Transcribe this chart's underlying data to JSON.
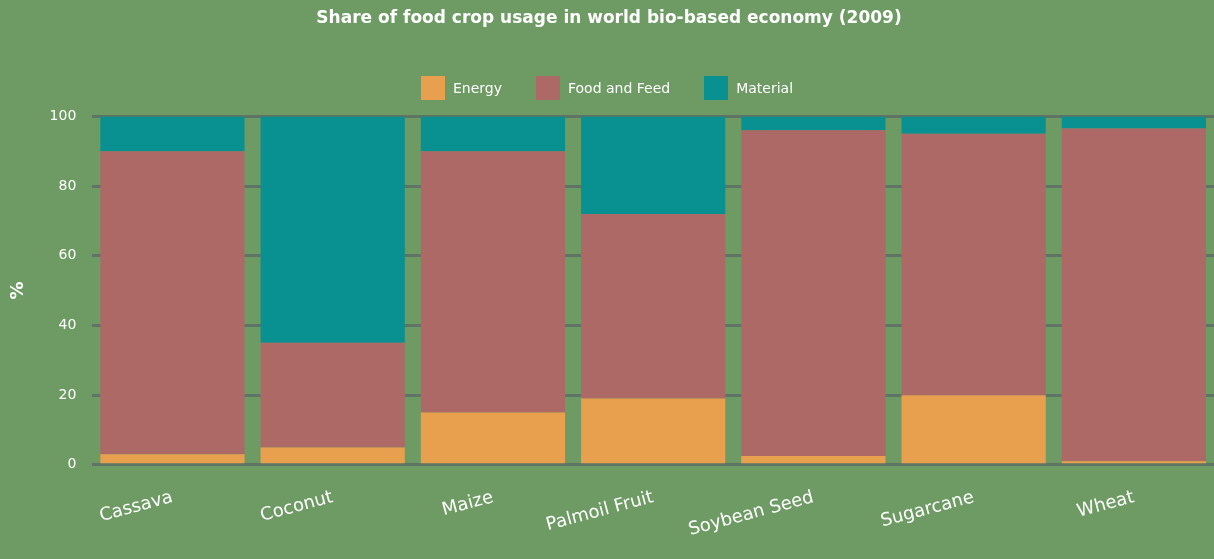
{
  "chart_data": {
    "type": "bar",
    "title": "Share of food crop usage in world bio-based economy (2009)",
    "ylabel": "%",
    "categories": [
      "Cassava",
      "Coconut",
      "Maize",
      "Palmoil Fruit",
      "Soybean Seed",
      "Sugarcane",
      "Wheat"
    ],
    "series": [
      {
        "name": "Energy",
        "color": "#e8a04f",
        "values": [
          3,
          5,
          15,
          19,
          2.5,
          20,
          1
        ]
      },
      {
        "name": "Food and Feed",
        "color": "#ad6966",
        "values": [
          87,
          30,
          75,
          53,
          93.5,
          75,
          95.5
        ]
      },
      {
        "name": "Material",
        "color": "#089190",
        "values": [
          10,
          65,
          10,
          28,
          4,
          5,
          3.5
        ]
      }
    ],
    "stacked": true,
    "ylim": [
      0,
      100
    ],
    "yticks": [
      0,
      20,
      40,
      60,
      80,
      100
    ],
    "grid": "y",
    "legend": "top"
  }
}
